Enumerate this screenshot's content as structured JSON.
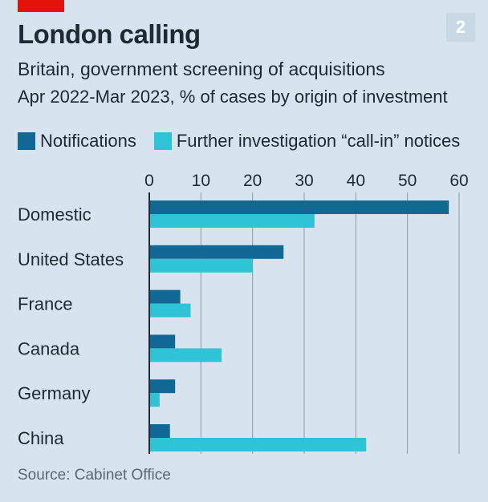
{
  "badge": "2",
  "title": "London calling",
  "subtitle": "Britain, government screening of acquisitions",
  "subsubtitle": "Apr 2022-Mar 2023, % of cases by origin of investment",
  "source": "Source: Cabinet Office",
  "colors": {
    "notifications": "#126895",
    "callin": "#2fc3d6",
    "red_tag": "#e3120b",
    "grid": "#8a9aa6",
    "axis": "#1f2a33"
  },
  "chart_data": {
    "type": "bar",
    "orientation": "horizontal",
    "title": "London calling",
    "xlim": [
      0,
      60
    ],
    "xticks": [
      0,
      10,
      20,
      30,
      40,
      50,
      60
    ],
    "grid": true,
    "legend_position": "top",
    "categories": [
      "Domestic",
      "United States",
      "France",
      "Canada",
      "Germany",
      "China"
    ],
    "series": [
      {
        "name": "Notifications",
        "values": [
          58,
          26,
          6,
          5,
          5,
          4
        ]
      },
      {
        "name": "Further investigation “call-in” notices",
        "values": [
          32,
          20,
          8,
          14,
          2,
          42
        ]
      }
    ]
  }
}
